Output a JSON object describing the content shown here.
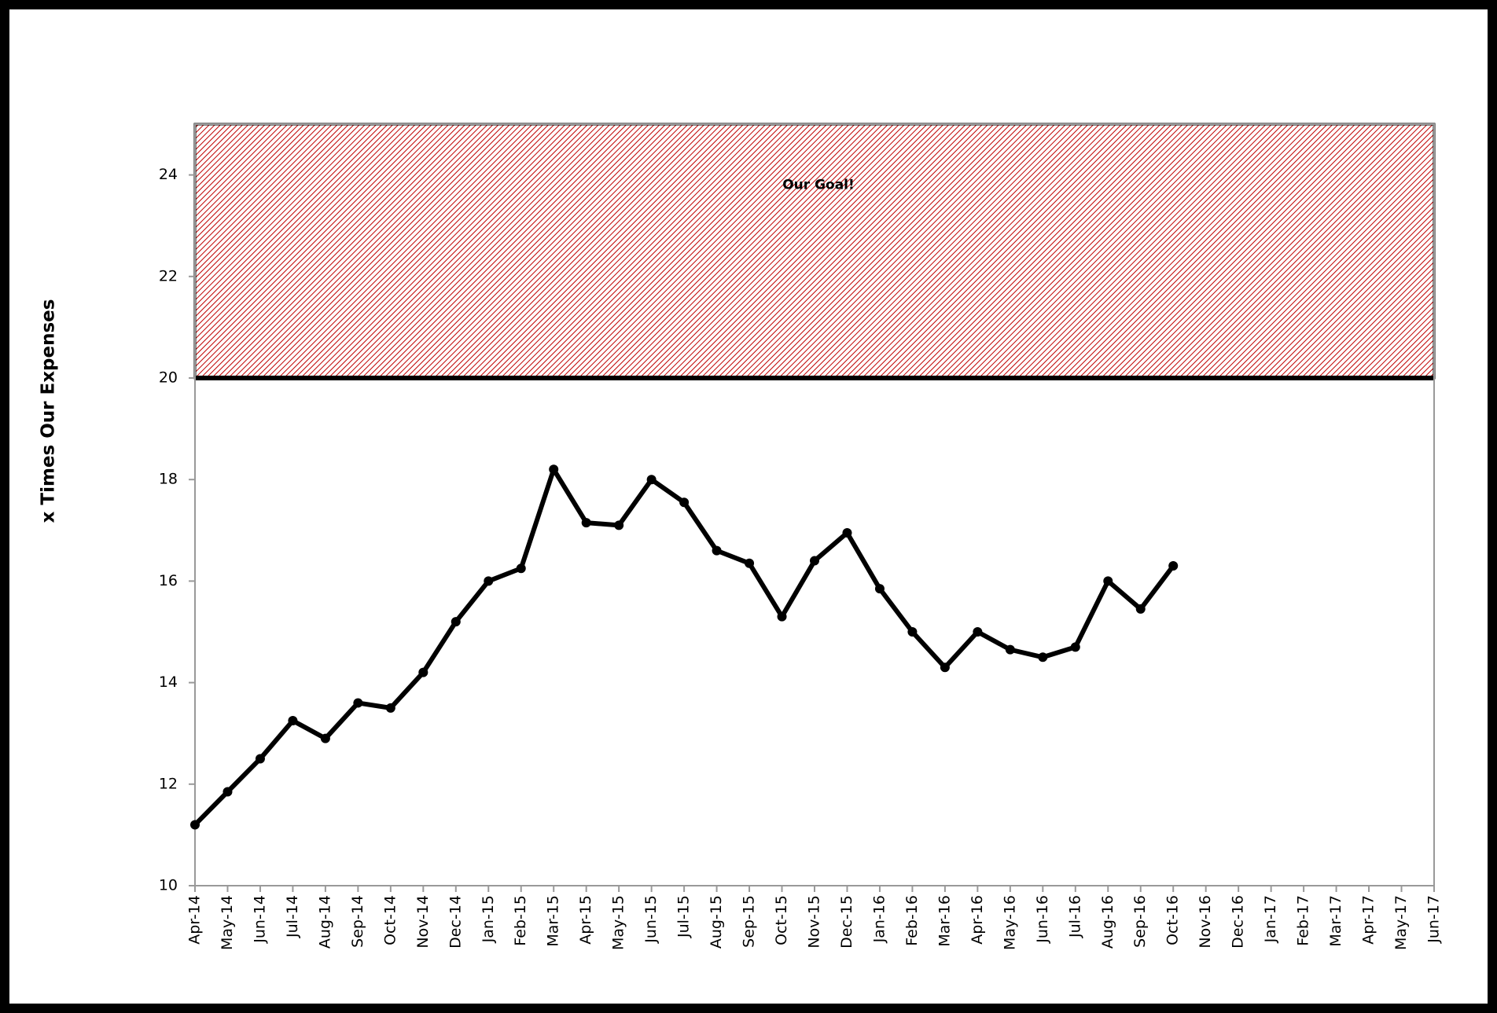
{
  "chart_data": {
    "type": "line",
    "y_label": "x Times Our Expenses",
    "categories": [
      "Apr-14",
      "May-14",
      "Jun-14",
      "Jul-14",
      "Aug-14",
      "Sep-14",
      "Oct-14",
      "Nov-14",
      "Dec-14",
      "Jan-15",
      "Feb-15",
      "Mar-15",
      "Apr-15",
      "May-15",
      "Jun-15",
      "Jul-15",
      "Aug-15",
      "Sep-15",
      "Oct-15",
      "Nov-15",
      "Dec-15",
      "Jan-16",
      "Feb-16",
      "Mar-16",
      "Apr-16",
      "May-16",
      "Jun-16",
      "Jul-16",
      "Aug-16",
      "Sep-16",
      "Oct-16",
      "Nov-16",
      "Dec-16",
      "Jan-17",
      "Feb-17",
      "Mar-17",
      "Apr-17",
      "May-17",
      "Jun-17"
    ],
    "values": [
      11.2,
      11.85,
      12.5,
      13.25,
      12.9,
      13.6,
      13.5,
      14.2,
      15.2,
      16.0,
      16.25,
      18.2,
      17.15,
      17.1,
      18.0,
      17.55,
      16.6,
      16.35,
      15.3,
      16.4,
      16.95,
      15.85,
      15.0,
      14.3,
      15.0,
      14.65,
      14.5,
      14.7,
      16.0,
      15.45,
      16.3,
      null,
      null,
      null,
      null,
      null,
      null,
      null,
      null
    ],
    "color": "#000000",
    "ylim": [
      10,
      25
    ],
    "yticks": [
      10,
      12,
      14,
      16,
      18,
      20,
      22,
      24
    ],
    "goal_band": {
      "range": [
        20,
        25
      ],
      "label": "Our Goal!",
      "color": "#c00000"
    }
  }
}
